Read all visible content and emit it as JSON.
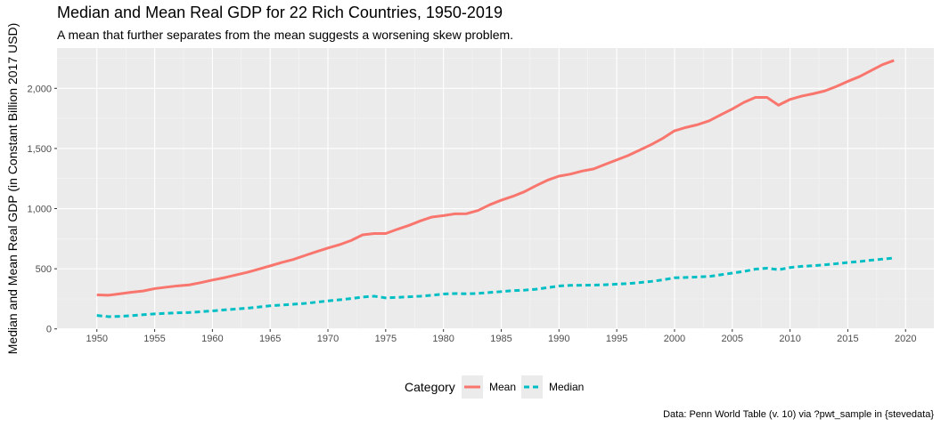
{
  "chart_data": {
    "type": "line",
    "title": "Median and Mean Real GDP for 22 Rich Countries, 1950-2019",
    "subtitle": "A mean that further separates from the mean suggests a worsening skew problem.",
    "xlabel": "",
    "ylabel": "Median and Mean Real GDP (in Constant Billion 2017 USD)",
    "caption": "Data: Penn World Table (v. 10) via ?pwt_sample in {stevedata}",
    "xlim": [
      1946.55,
      2022.45
    ],
    "ylim": [
      -2,
      2335
    ],
    "x_ticks": [
      1950,
      1955,
      1960,
      1965,
      1970,
      1975,
      1980,
      1985,
      1990,
      1995,
      2000,
      2005,
      2010,
      2015,
      2020
    ],
    "y_ticks": [
      0,
      500,
      1000,
      1500,
      2000
    ],
    "y_tick_labels": [
      "0",
      "500",
      "1,000",
      "1,500",
      "2,000"
    ],
    "grid": true,
    "legend": {
      "title": "Category",
      "position": "bottom"
    },
    "x": [
      1950,
      1951,
      1952,
      1953,
      1954,
      1955,
      1956,
      1957,
      1958,
      1959,
      1960,
      1961,
      1962,
      1963,
      1964,
      1965,
      1966,
      1967,
      1968,
      1969,
      1970,
      1971,
      1972,
      1973,
      1974,
      1975,
      1976,
      1977,
      1978,
      1979,
      1980,
      1981,
      1982,
      1983,
      1984,
      1985,
      1986,
      1987,
      1988,
      1989,
      1990,
      1991,
      1992,
      1993,
      1994,
      1995,
      1996,
      1997,
      1998,
      1999,
      2000,
      2001,
      2002,
      2003,
      2004,
      2005,
      2006,
      2007,
      2008,
      2009,
      2010,
      2011,
      2012,
      2013,
      2014,
      2015,
      2016,
      2017,
      2018,
      2019
    ],
    "series": [
      {
        "name": "Mean",
        "color": "#f8766d",
        "dash": "solid",
        "values": [
          283,
          280,
          292,
          305,
          315,
          335,
          347,
          358,
          366,
          385,
          406,
          425,
          448,
          470,
          497,
          524,
          552,
          577,
          610,
          642,
          672,
          700,
          735,
          782,
          793,
          793,
          828,
          860,
          898,
          930,
          942,
          957,
          958,
          985,
          1032,
          1070,
          1102,
          1140,
          1190,
          1236,
          1270,
          1287,
          1312,
          1330,
          1368,
          1405,
          1442,
          1487,
          1533,
          1585,
          1647,
          1675,
          1698,
          1730,
          1780,
          1828,
          1883,
          1925,
          1925,
          1860,
          1908,
          1935,
          1955,
          1978,
          2015,
          2058,
          2097,
          2147,
          2197,
          2232
        ]
      },
      {
        "name": "Median",
        "color": "#00bfc4",
        "dash": "dashed",
        "values": [
          112,
          102,
          104,
          110,
          118,
          125,
          130,
          134,
          137,
          143,
          150,
          158,
          165,
          172,
          182,
          192,
          199,
          205,
          212,
          222,
          233,
          242,
          252,
          265,
          272,
          258,
          262,
          267,
          272,
          280,
          290,
          294,
          292,
          295,
          303,
          310,
          318,
          322,
          330,
          343,
          357,
          362,
          363,
          364,
          367,
          372,
          377,
          385,
          395,
          408,
          425,
          428,
          432,
          436,
          450,
          464,
          478,
          497,
          505,
          492,
          510,
          520,
          525,
          533,
          542,
          552,
          560,
          571,
          580,
          590
        ]
      }
    ]
  }
}
